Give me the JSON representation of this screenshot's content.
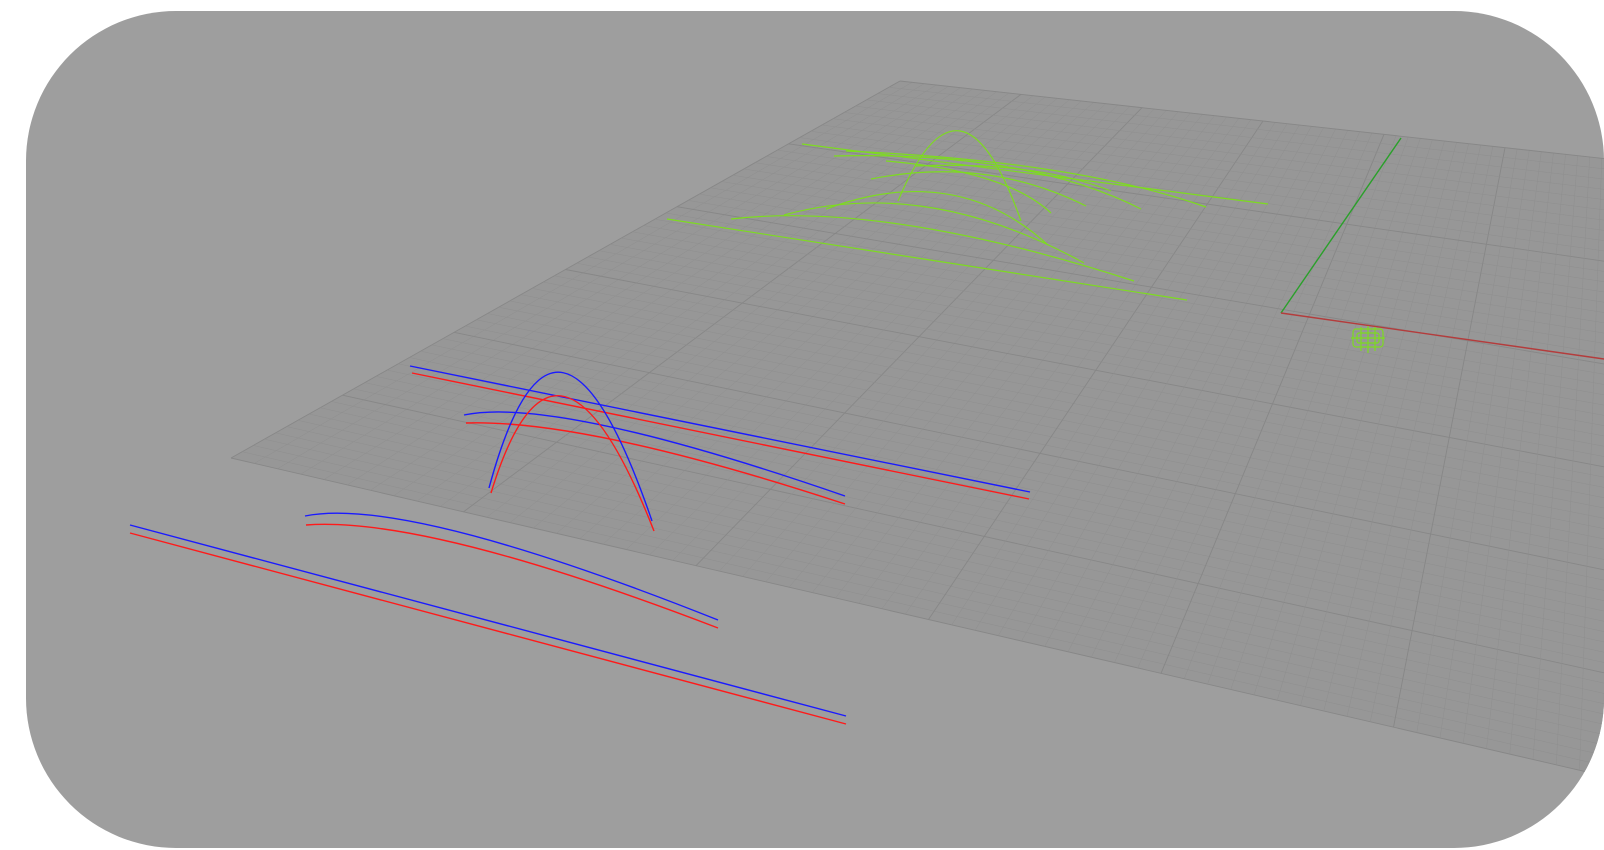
{
  "viewport": {
    "view": "perspective",
    "background_color": "#9e9e9e",
    "grid_color": "#8f8f8f",
    "grid_major_color": "#878787",
    "grid_fill_color": "#979797",
    "axis_x_color": "#b43c3c",
    "axis_y_color": "#2aa02a"
  },
  "scene": {
    "curve_colors": {
      "blue": "#1a1aff",
      "red": "#ff1a1a",
      "green": "#7ddc1f"
    },
    "curve_sets": [
      {
        "name": "blue-red-pair-near",
        "colors": [
          "blue",
          "red"
        ],
        "count": 2
      },
      {
        "name": "blue-red-pair-mid",
        "colors": [
          "blue",
          "red"
        ],
        "count": 3
      },
      {
        "name": "green-curve-family",
        "colors": [
          "green"
        ],
        "count": 11
      }
    ],
    "object_icons": [
      "small-green-object-icon"
    ]
  }
}
